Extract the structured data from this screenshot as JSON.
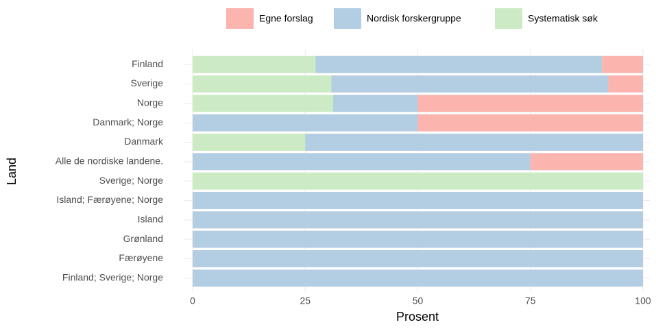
{
  "chart_data": {
    "type": "stacked-barh",
    "x_label": "Prosent",
    "y_label": "Land",
    "categories": [
      "Finland",
      "Sverige",
      "Norge",
      "Danmark; Norge",
      "Danmark",
      "Alle de nordiske landene.",
      "Sverige; Norge",
      "Island; Færøyene; Norge",
      "Island",
      "Grønland",
      "Færøyene",
      "Finland; Sverige; Norge"
    ],
    "series": [
      {
        "name": "Egne forslag",
        "color": "#fbb4ae",
        "values": [
          9.1,
          7.7,
          50,
          50,
          0,
          25,
          0,
          0,
          0,
          0,
          0,
          0
        ]
      },
      {
        "name": "Nordisk forskergruppe",
        "color": "#b3cde3",
        "values": [
          63.6,
          61.5,
          18.8,
          50,
          75,
          75,
          0,
          100,
          100,
          100,
          100,
          100
        ]
      },
      {
        "name": "Systematisk søk",
        "color": "#ccebc5",
        "values": [
          27.3,
          30.8,
          31.2,
          0,
          25,
          0,
          100,
          0,
          0,
          0,
          0,
          0
        ]
      }
    ],
    "xlim": [
      0,
      100
    ],
    "xticks": [
      0,
      25,
      50,
      75,
      100
    ],
    "grid": true,
    "legend": "top"
  }
}
